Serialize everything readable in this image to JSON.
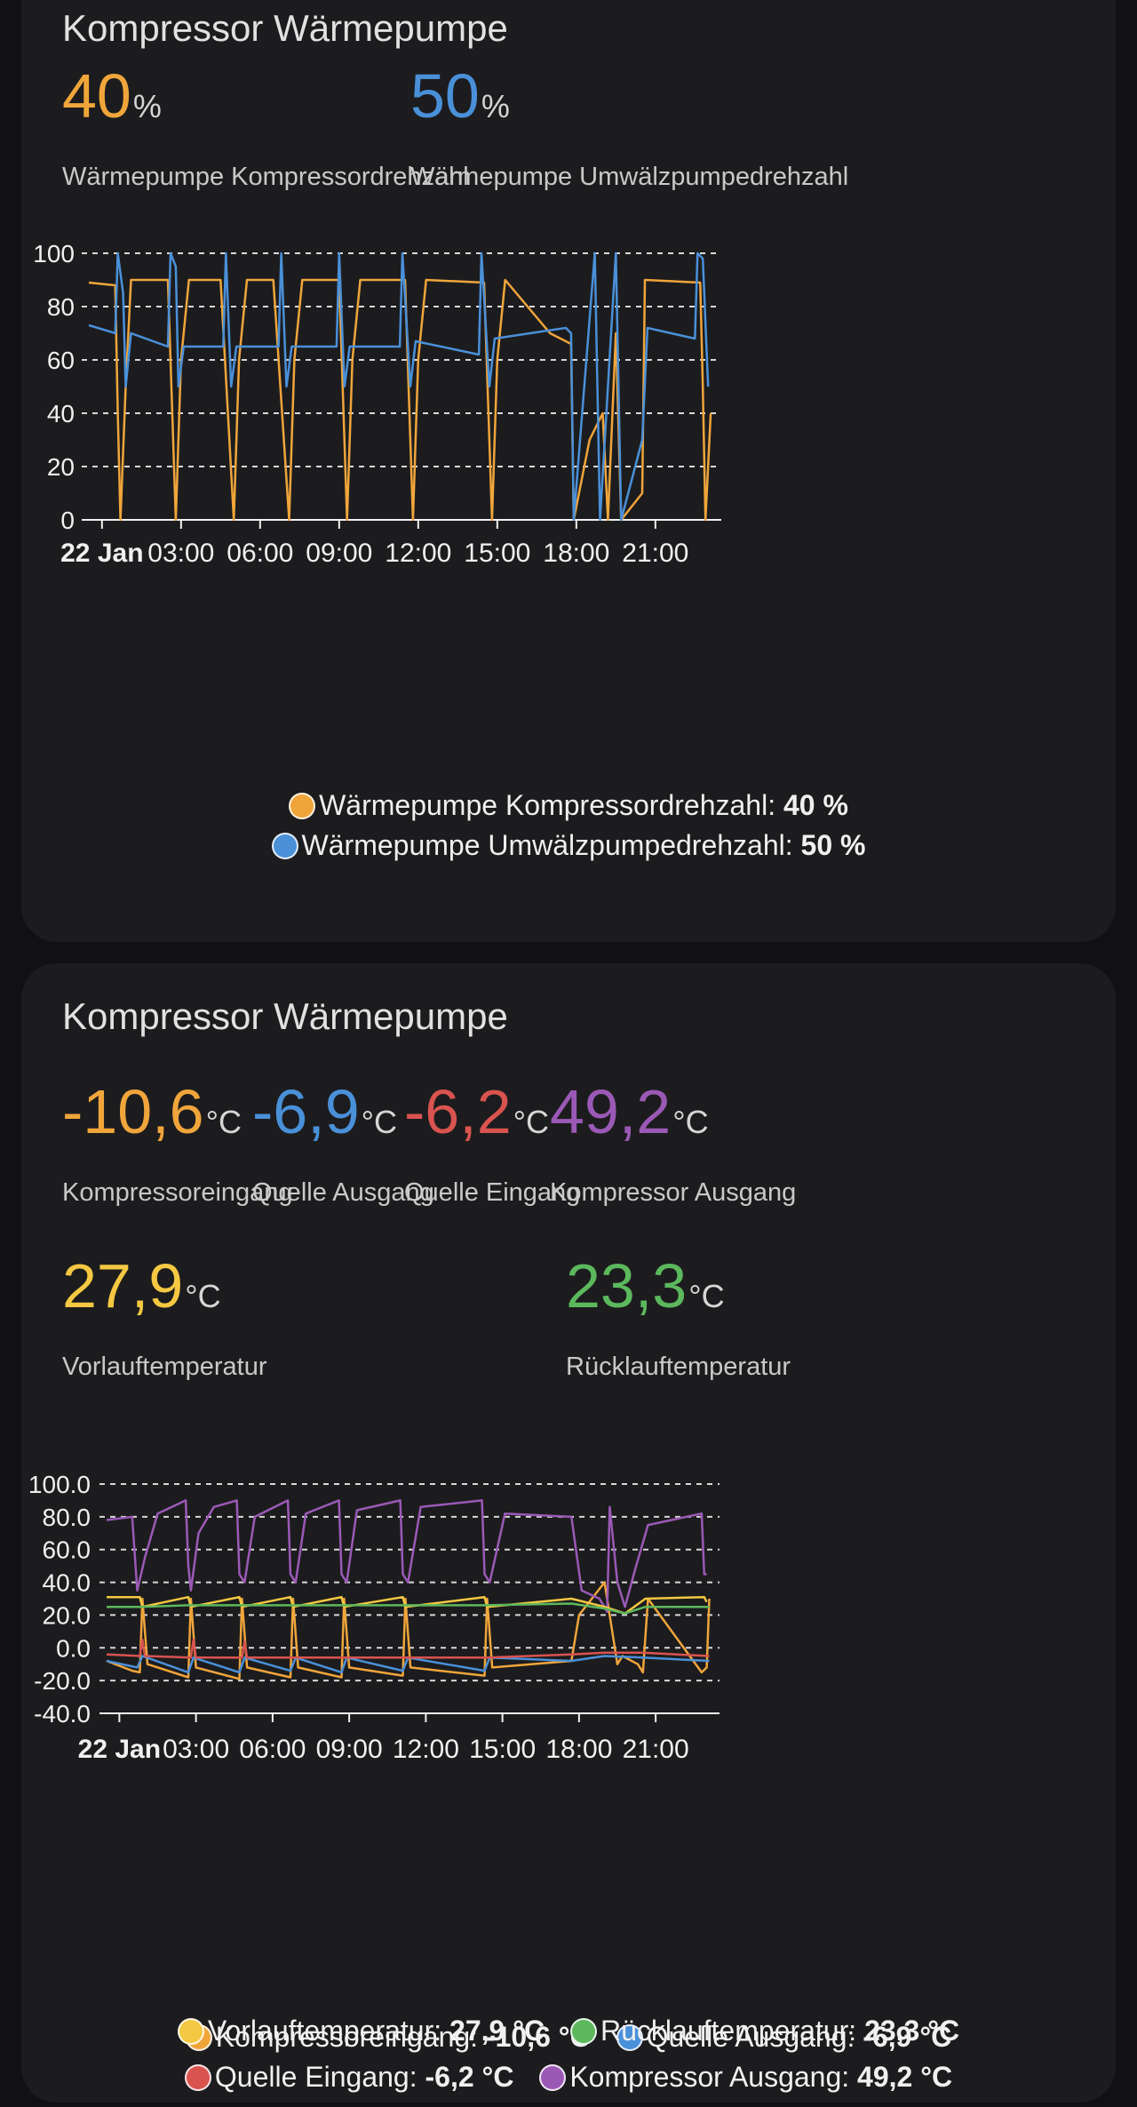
{
  "colors": {
    "orange": "#f0a53b",
    "blue": "#4a90d9",
    "red": "#d9534f",
    "purple": "#9b59b6",
    "yellow": "#f4c842",
    "green": "#5cb85c"
  },
  "card1": {
    "title": "Kompressor Wärmepumpe",
    "stats": [
      {
        "value": "40",
        "unit": "%",
        "label": "Wärmepumpe Kompressordrehzahl",
        "color": "#f0a53b"
      },
      {
        "value": "50",
        "unit": "%",
        "label": "Wärmepumpe Umwälzpumpedrehzahl",
        "color": "#4a90d9"
      }
    ],
    "legend": [
      {
        "name": "Wärmepumpe Kompressordrehzahl:",
        "value": "40 %"
      },
      {
        "name": "Wärmepumpe Umwälzpumpedrehzahl:",
        "value": "50 %"
      }
    ]
  },
  "card2": {
    "title": "Kompressor Wärmepumpe",
    "stats": [
      {
        "value": "-10,6",
        "unit": "°C",
        "label": "Kompressoreingang",
        "color": "#f0a53b"
      },
      {
        "value": "-6,9",
        "unit": "°C",
        "label": "Quelle Ausgang",
        "color": "#4a90d9"
      },
      {
        "value": "-6,2",
        "unit": "°C",
        "label": "Quelle Eingang",
        "color": "#d9534f"
      },
      {
        "value": "49,2",
        "unit": "°C",
        "label": "Kompressor Ausgang",
        "color": "#9b59b6"
      },
      {
        "value": "27,9",
        "unit": "°C",
        "label": "Vorlauftemperatur",
        "color": "#f4c842"
      },
      {
        "value": "23,3",
        "unit": "°C",
        "label": "Rücklauftemperatur",
        "color": "#5cb85c"
      }
    ],
    "legend": [
      {
        "name": "Kompressoreingang:",
        "value": "-10,6 °C"
      },
      {
        "name": "Quelle Ausgang:",
        "value": "-6,9 °C"
      },
      {
        "name": "Quelle Eingang:",
        "value": "-6,2 °C"
      },
      {
        "name": "Kompressor Ausgang:",
        "value": "49,2 °C"
      },
      {
        "name": "Vorlauftemperatur:",
        "value": "27,9 °C"
      },
      {
        "name": "Rücklauftemperatur:",
        "value": "23,3 °C"
      }
    ]
  },
  "chart_data": [
    {
      "type": "line",
      "x_ticks": [
        "22 Jan",
        "03:00",
        "06:00",
        "09:00",
        "12:00",
        "15:00",
        "18:00",
        "21:00"
      ],
      "y_ticks": [
        "0",
        "20",
        "40",
        "60",
        "80",
        "100"
      ],
      "ylim": [
        0,
        100
      ],
      "grid": true,
      "legend_placement": "bottom",
      "series": [
        {
          "name": "Wärmepumpe Kompressordrehzahl",
          "color": "#f0a53b",
          "points": [
            [
              0,
              89
            ],
            [
              1,
              88
            ],
            [
              1.1,
              40
            ],
            [
              1.2,
              0
            ],
            [
              1.4,
              50
            ],
            [
              1.6,
              90
            ],
            [
              2,
              90
            ],
            [
              3,
              90
            ],
            [
              3.3,
              0
            ],
            [
              3.5,
              60
            ],
            [
              3.8,
              90
            ],
            [
              5,
              90
            ],
            [
              5.5,
              0
            ],
            [
              5.7,
              60
            ],
            [
              6,
              90
            ],
            [
              7,
              90
            ],
            [
              7.6,
              0
            ],
            [
              7.8,
              60
            ],
            [
              8.1,
              90
            ],
            [
              9.5,
              90
            ],
            [
              9.8,
              0
            ],
            [
              10,
              60
            ],
            [
              10.3,
              90
            ],
            [
              12,
              90
            ],
            [
              12.3,
              0
            ],
            [
              12.5,
              60
            ],
            [
              12.8,
              90
            ],
            [
              15,
              89
            ],
            [
              15.3,
              0
            ],
            [
              15.5,
              60
            ],
            [
              15.8,
              90
            ],
            [
              17.5,
              70
            ],
            [
              18.3,
              66
            ],
            [
              18.4,
              0
            ],
            [
              19,
              30
            ],
            [
              19.5,
              40
            ],
            [
              19.7,
              0
            ],
            [
              20,
              70
            ],
            [
              20.2,
              0
            ],
            [
              21,
              10
            ],
            [
              21.1,
              90
            ],
            [
              23.2,
              89
            ],
            [
              23.3,
              50
            ],
            [
              23.4,
              0
            ],
            [
              23.6,
              40
            ]
          ]
        },
        {
          "name": "Wärmepumpe Umwälzpumpedrehzahl",
          "color": "#4a90d9",
          "points": [
            [
              0,
              73
            ],
            [
              1,
              70
            ],
            [
              1.1,
              100
            ],
            [
              1.3,
              85
            ],
            [
              1.4,
              50
            ],
            [
              1.6,
              70
            ],
            [
              3,
              65
            ],
            [
              3.1,
              100
            ],
            [
              3.3,
              95
            ],
            [
              3.4,
              50
            ],
            [
              3.6,
              65
            ],
            [
              5.1,
              65
            ],
            [
              5.2,
              100
            ],
            [
              5.4,
              50
            ],
            [
              5.6,
              65
            ],
            [
              7.2,
              65
            ],
            [
              7.3,
              100
            ],
            [
              7.5,
              50
            ],
            [
              7.7,
              65
            ],
            [
              9.4,
              65
            ],
            [
              9.5,
              100
            ],
            [
              9.7,
              50
            ],
            [
              9.9,
              65
            ],
            [
              11.8,
              65
            ],
            [
              11.9,
              100
            ],
            [
              12.2,
              50
            ],
            [
              12.4,
              67
            ],
            [
              14.8,
              62
            ],
            [
              14.9,
              100
            ],
            [
              15.2,
              50
            ],
            [
              15.4,
              68
            ],
            [
              18.1,
              72
            ],
            [
              18.3,
              70
            ],
            [
              18.4,
              0
            ],
            [
              19.2,
              100
            ],
            [
              19.4,
              0
            ],
            [
              20,
              100
            ],
            [
              20.2,
              0
            ],
            [
              21,
              30
            ],
            [
              21.2,
              72
            ],
            [
              23,
              68
            ],
            [
              23.1,
              100
            ],
            [
              23.3,
              98
            ],
            [
              23.5,
              50
            ]
          ]
        }
      ]
    },
    {
      "type": "line",
      "x_ticks": [
        "22 Jan",
        "03:00",
        "06:00",
        "09:00",
        "12:00",
        "15:00",
        "18:00",
        "21:00"
      ],
      "y_ticks": [
        "100.0",
        "80.0",
        "60.0",
        "40.0",
        "20.0",
        "0.0",
        "-20.0",
        "-40.0"
      ],
      "ylim": [
        -40,
        100
      ],
      "grid": true,
      "legend_placement": "bottom",
      "series": [
        {
          "name": "Kompressoreingang",
          "color": "#f0a53b",
          "points": [
            [
              0,
              -8
            ],
            [
              1,
              -14
            ],
            [
              1.3,
              -15
            ],
            [
              1.4,
              30
            ],
            [
              1.6,
              -10
            ],
            [
              3.2,
              -18
            ],
            [
              3.3,
              30
            ],
            [
              3.5,
              -12
            ],
            [
              5.2,
              -19
            ],
            [
              5.3,
              30
            ],
            [
              5.5,
              -12
            ],
            [
              7.2,
              -18
            ],
            [
              7.3,
              30
            ],
            [
              7.5,
              -12
            ],
            [
              9.2,
              -18
            ],
            [
              9.3,
              30
            ],
            [
              9.5,
              -12
            ],
            [
              11.6,
              -17
            ],
            [
              11.7,
              30
            ],
            [
              11.9,
              -12
            ],
            [
              14.8,
              -17
            ],
            [
              14.9,
              30
            ],
            [
              15.1,
              -12
            ],
            [
              18.2,
              -8
            ],
            [
              18.5,
              20
            ],
            [
              19.5,
              40
            ],
            [
              20,
              -10
            ],
            [
              20.2,
              -5
            ],
            [
              20.8,
              -10
            ],
            [
              21,
              -15
            ],
            [
              21.2,
              30
            ],
            [
              23.3,
              -15
            ],
            [
              23.5,
              -12
            ],
            [
              23.6,
              30
            ]
          ]
        },
        {
          "name": "Quelle Ausgang",
          "color": "#4a90d9",
          "points": [
            [
              0,
              -8
            ],
            [
              1.2,
              -12
            ],
            [
              1.4,
              -5
            ],
            [
              3.2,
              -15
            ],
            [
              3.4,
              -6
            ],
            [
              5.2,
              -15
            ],
            [
              5.4,
              -6
            ],
            [
              7.2,
              -14
            ],
            [
              7.4,
              -6
            ],
            [
              9.2,
              -15
            ],
            [
              9.4,
              -6
            ],
            [
              11.6,
              -14
            ],
            [
              11.8,
              -6
            ],
            [
              14.8,
              -14
            ],
            [
              15,
              -6
            ],
            [
              18.2,
              -8
            ],
            [
              19.5,
              -5
            ],
            [
              21,
              -6
            ],
            [
              23.6,
              -8
            ]
          ]
        },
        {
          "name": "Quelle Eingang",
          "color": "#d9534f",
          "points": [
            [
              0,
              -4
            ],
            [
              1.3,
              -5
            ],
            [
              1.4,
              5
            ],
            [
              1.5,
              -5
            ],
            [
              3.3,
              -6
            ],
            [
              3.4,
              5
            ],
            [
              3.5,
              -6
            ],
            [
              5.3,
              -6
            ],
            [
              5.4,
              4
            ],
            [
              5.5,
              -6
            ],
            [
              7.3,
              -6
            ],
            [
              9.3,
              -6
            ],
            [
              11.7,
              -6
            ],
            [
              14.9,
              -6
            ],
            [
              18.2,
              -4
            ],
            [
              19.5,
              -3
            ],
            [
              21,
              -3
            ],
            [
              23.6,
              -5
            ]
          ]
        },
        {
          "name": "Kompressor Ausgang",
          "color": "#9b59b6",
          "points": [
            [
              0,
              78
            ],
            [
              1,
              80
            ],
            [
              1.2,
              35
            ],
            [
              1.5,
              55
            ],
            [
              2,
              82
            ],
            [
              3.1,
              90
            ],
            [
              3.2,
              50
            ],
            [
              3.3,
              35
            ],
            [
              3.6,
              70
            ],
            [
              4.2,
              86
            ],
            [
              5.1,
              90
            ],
            [
              5.2,
              45
            ],
            [
              5.4,
              40
            ],
            [
              5.8,
              80
            ],
            [
              7.1,
              90
            ],
            [
              7.2,
              45
            ],
            [
              7.4,
              40
            ],
            [
              7.8,
              82
            ],
            [
              9.1,
              90
            ],
            [
              9.2,
              45
            ],
            [
              9.4,
              40
            ],
            [
              9.8,
              84
            ],
            [
              11.5,
              90
            ],
            [
              11.6,
              45
            ],
            [
              11.8,
              40
            ],
            [
              12.3,
              86
            ],
            [
              14.7,
              90
            ],
            [
              14.8,
              45
            ],
            [
              15,
              40
            ],
            [
              15.6,
              82
            ],
            [
              18.2,
              80
            ],
            [
              18.6,
              35
            ],
            [
              19.3,
              30
            ],
            [
              19.6,
              22
            ],
            [
              19.7,
              86
            ],
            [
              20,
              40
            ],
            [
              20.3,
              25
            ],
            [
              20.7,
              48
            ],
            [
              21.2,
              75
            ],
            [
              23.3,
              82
            ],
            [
              23.4,
              45
            ],
            [
              23.5,
              45
            ]
          ]
        },
        {
          "name": "Vorlauftemperatur",
          "color": "#f4c842",
          "points": [
            [
              0,
              31
            ],
            [
              1.3,
              31
            ],
            [
              1.4,
              25
            ],
            [
              3.2,
              31
            ],
            [
              3.3,
              25
            ],
            [
              5.2,
              31
            ],
            [
              5.3,
              25
            ],
            [
              7.2,
              31
            ],
            [
              7.3,
              25
            ],
            [
              9.2,
              31
            ],
            [
              9.3,
              25
            ],
            [
              11.6,
              31
            ],
            [
              11.7,
              25
            ],
            [
              14.8,
              31
            ],
            [
              14.9,
              25
            ],
            [
              18.2,
              30
            ],
            [
              19.5,
              25
            ],
            [
              20.3,
              21
            ],
            [
              21.1,
              30
            ],
            [
              23.4,
              31
            ],
            [
              23.5,
              28
            ]
          ]
        },
        {
          "name": "Rücklauftemperatur",
          "color": "#5cb85c",
          "points": [
            [
              0,
              25
            ],
            [
              1.3,
              25
            ],
            [
              3.2,
              26
            ],
            [
              5.2,
              26
            ],
            [
              7.2,
              26
            ],
            [
              9.2,
              26
            ],
            [
              11.6,
              26
            ],
            [
              14.8,
              26
            ],
            [
              18.2,
              27
            ],
            [
              19.5,
              24
            ],
            [
              20.3,
              21
            ],
            [
              21.1,
              25
            ],
            [
              23.6,
              25
            ]
          ]
        }
      ]
    }
  ]
}
